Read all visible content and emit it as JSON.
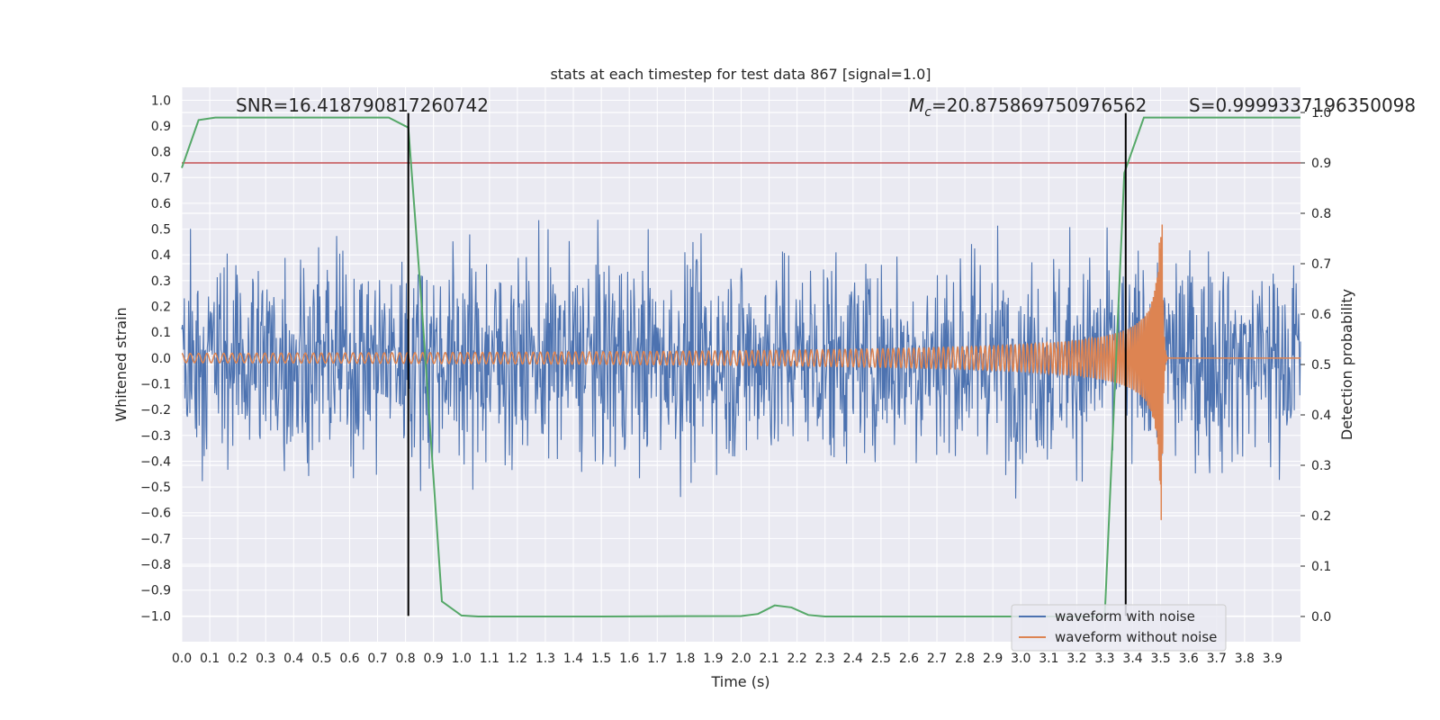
{
  "chart_data": {
    "type": "line",
    "title": "stats at each timestep for test data 867 [signal=1.0]",
    "xlabel": "Time (s)",
    "ylabel": "Whitened strain",
    "y2label": "Detection probability",
    "xlim": [
      0.0,
      4.0
    ],
    "ylim": [
      -1.1,
      1.05
    ],
    "y2lim": [
      -0.05,
      1.05
    ],
    "xticks": [
      "0.0",
      "0.1",
      "0.2",
      "0.3",
      "0.4",
      "0.5",
      "0.6",
      "0.7",
      "0.8",
      "0.9",
      "1.0",
      "1.1",
      "1.2",
      "1.3",
      "1.4",
      "1.5",
      "1.6",
      "1.7",
      "1.8",
      "1.9",
      "2.0",
      "2.1",
      "2.2",
      "2.3",
      "2.4",
      "2.5",
      "2.6",
      "2.7",
      "2.8",
      "2.9",
      "3.0",
      "3.1",
      "3.2",
      "3.3",
      "3.4",
      "3.5",
      "3.6",
      "3.7",
      "3.8",
      "3.9"
    ],
    "yticks": [
      "1.0",
      "0.9",
      "0.8",
      "0.7",
      "0.6",
      "0.5",
      "0.4",
      "0.3",
      "0.2",
      "0.1",
      "0.0",
      "-0.1",
      "-0.2",
      "-0.3",
      "-0.4",
      "-0.5",
      "-0.6",
      "-0.7",
      "-0.8",
      "-0.9",
      "-1.0"
    ],
    "y2ticks": [
      "1.0",
      "0.9",
      "0.8",
      "0.7",
      "0.6",
      "0.5",
      "0.4",
      "0.3",
      "0.2",
      "0.1",
      "0.0"
    ],
    "grid": true,
    "legend_position": "bottom-right",
    "annotations": {
      "snr": "SNR=16.418790817260742",
      "mc_symbol": "M",
      "mc_sub": "c",
      "mc_value": "=20.875869750976562",
      "s": "S=0.9999337196350098"
    },
    "series": [
      {
        "name": "waveform with noise",
        "color": "#4c72b0",
        "note_kind": "noisy",
        "duration": 4.0,
        "samples": 1800,
        "amplitude_rms": 0.2
      },
      {
        "name": "waveform without noise",
        "color": "#dd8452",
        "note_kind": "chirp",
        "merger_time": 3.505,
        "start_amplitude": 0.018,
        "peak_amplitude": 0.65
      },
      {
        "name": "",
        "color": "#55a868",
        "axis": "right",
        "x": [
          0.0,
          0.06,
          0.12,
          0.3,
          0.5,
          0.74,
          0.81,
          0.86,
          0.93,
          1.0,
          1.06,
          1.5,
          2.0,
          2.06,
          2.12,
          2.18,
          2.24,
          2.3,
          2.8,
          3.3,
          3.37,
          3.44,
          3.5,
          3.9,
          4.0
        ],
        "y": [
          0.89,
          0.985,
          0.99,
          0.99,
          0.99,
          0.99,
          0.97,
          0.6,
          0.03,
          0.002,
          0.0,
          0.0,
          0.001,
          0.005,
          0.022,
          0.018,
          0.003,
          0.0,
          0.0,
          0.0,
          0.88,
          0.99,
          0.99,
          0.99,
          0.99
        ]
      }
    ],
    "threshold": {
      "axis": "right",
      "value": 0.9,
      "color": "#c44e52"
    },
    "vlines": [
      {
        "x": 0.81,
        "ymin": -1.0,
        "ymax": 0.95,
        "color": "#000000"
      },
      {
        "x": 3.375,
        "ymin": -1.0,
        "ymax": 0.95,
        "color": "#000000"
      }
    ],
    "colors": {
      "plot_bg": "#eaeaf2",
      "grid": "#ffffff",
      "text": "#262626"
    }
  }
}
